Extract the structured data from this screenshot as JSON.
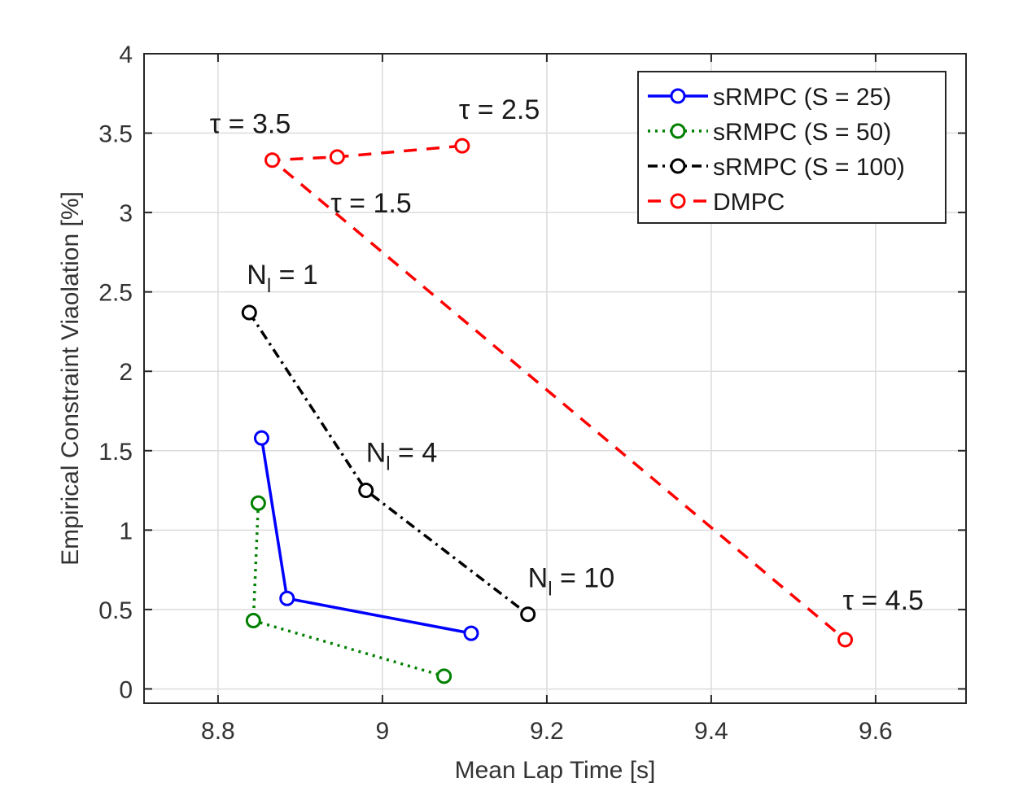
{
  "chart_data": {
    "type": "line",
    "xlabel": "Mean Lap Time [s]",
    "ylabel": "Empirical Constraint Viaolation [%]",
    "xlim": [
      8.71,
      9.71
    ],
    "ylim": [
      -0.09,
      4.0
    ],
    "xticks": [
      8.8,
      9,
      9.2,
      9.4,
      9.6
    ],
    "xtick_labels": [
      "8.8",
      "9",
      "9.2",
      "9.4",
      "9.6"
    ],
    "yticks": [
      0,
      0.5,
      1,
      1.5,
      2,
      2.5,
      3,
      3.5,
      4
    ],
    "ytick_labels": [
      "0",
      "0.5",
      "1",
      "1.5",
      "2",
      "2.5",
      "3",
      "3.5",
      "4"
    ],
    "grid": true,
    "legend_position": "top-right",
    "series": [
      {
        "name": "sRMPC (S = 25)",
        "color": "#0000ff",
        "line_style": "solid",
        "marker": "circle",
        "x": [
          8.853,
          8.884,
          9.108
        ],
        "y": [
          1.58,
          0.57,
          0.35
        ]
      },
      {
        "name": "sRMPC (S = 50)",
        "color": "#008000",
        "line_style": "dotted",
        "marker": "circle",
        "x": [
          8.849,
          8.843,
          9.075
        ],
        "y": [
          1.17,
          0.43,
          0.08
        ]
      },
      {
        "name": "sRMPC (S = 100)",
        "color": "#000000",
        "line_style": "dashdot",
        "marker": "circle",
        "x": [
          8.838,
          8.98,
          9.177
        ],
        "y": [
          2.37,
          1.25,
          0.47
        ]
      },
      {
        "name": "DMPC",
        "color": "#ff0000",
        "line_style": "dashed",
        "marker": "circle",
        "x": [
          9.097,
          8.945,
          8.866,
          9.563
        ],
        "y": [
          3.42,
          3.35,
          3.33,
          0.31
        ]
      }
    ],
    "annotations": [
      {
        "id": "tau-3-5",
        "text": "τ = 3.5",
        "x": 8.79,
        "y": 3.5
      },
      {
        "id": "tau-2-5",
        "text": "τ = 2.5",
        "x": 9.093,
        "y": 3.59
      },
      {
        "id": "tau-1-5",
        "text": "τ = 1.5",
        "x": 8.937,
        "y": 3.0
      },
      {
        "id": "tau-4-5",
        "text": "τ = 4.5",
        "x": 9.56,
        "y": 0.5
      },
      {
        "id": "nl-1",
        "main": "N",
        "sub": "l",
        "tail": " = 1",
        "x": 8.835,
        "y": 2.55
      },
      {
        "id": "nl-4",
        "main": "N",
        "sub": "l",
        "tail": " = 4",
        "x": 8.98,
        "y": 1.43
      },
      {
        "id": "nl-10",
        "main": "N",
        "sub": "l",
        "tail": " = 10",
        "x": 9.177,
        "y": 0.64
      }
    ]
  }
}
